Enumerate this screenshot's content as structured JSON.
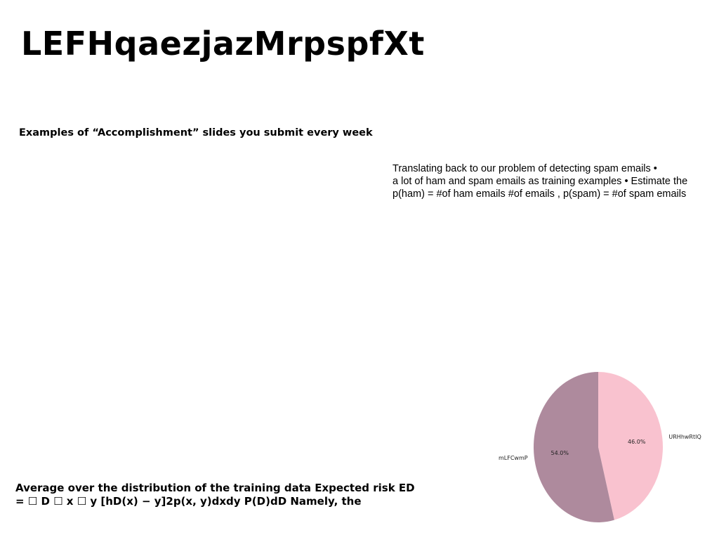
{
  "slide": {
    "title": "LEFHqaezjazMrpspfXt",
    "subtitle": "Examples of “Accomplishment” slides you submit every week",
    "body_lines": [
      "Translating back to our problem of detecting spam emails •",
      "a lot of ham and spam emails as training examples • Estimate the",
      "p(ham) = #of ham emails #of emails , p(spam) = #of spam emails"
    ],
    "bottom_lines": [
      "Average over the distribution of the training data Expected risk ED",
      "= ☐ D ☐ x ☐ y [hD(x) − y]2p(x, y)dxdy P(D)dD Namely, the"
    ]
  },
  "chart_data": {
    "type": "pie",
    "slices": [
      {
        "label": "URHhwRtIQ",
        "value": 46.0,
        "pct_label": "46.0%",
        "color": "#f9c2cf"
      },
      {
        "label": "mLFCwmP",
        "value": 54.0,
        "pct_label": "54.0%",
        "color": "#ae8a9d"
      }
    ],
    "start_angle_deg": 90,
    "direction": "clockwise"
  }
}
